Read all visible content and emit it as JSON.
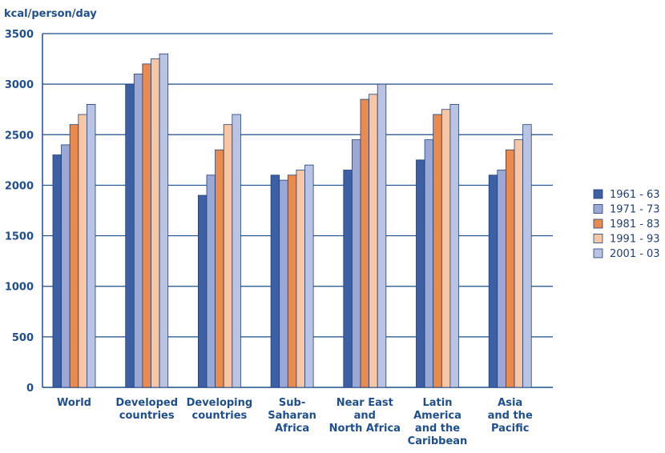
{
  "chart_data": {
    "type": "bar",
    "ylabel": "kcal/person/day",
    "ylim": [
      0,
      3500
    ],
    "yticks": [
      0,
      500,
      1000,
      1500,
      2000,
      2500,
      3000,
      3500
    ],
    "grid": true,
    "legend_position": "right",
    "categories": [
      [
        "World"
      ],
      [
        "Developed",
        "countries"
      ],
      [
        "Developing",
        "countries"
      ],
      [
        "Sub-",
        "Saharan",
        "Africa"
      ],
      [
        "Near East",
        "and",
        "North Africa"
      ],
      [
        "Latin",
        "America",
        "and the",
        "Caribbean"
      ],
      [
        "Asia",
        "and the",
        "Pacific"
      ]
    ],
    "series": [
      {
        "name": "1961 - 63",
        "color": "#3d5fa3",
        "values": [
          2300,
          3000,
          1900,
          2100,
          2150,
          2250,
          2100
        ]
      },
      {
        "name": "1971 - 73",
        "color": "#9ba8d6",
        "values": [
          2400,
          3100,
          2100,
          2050,
          2450,
          2450,
          2150
        ]
      },
      {
        "name": "1981 - 83",
        "color": "#e98a4e",
        "values": [
          2600,
          3200,
          2350,
          2100,
          2850,
          2700,
          2350
        ]
      },
      {
        "name": "1991 - 93",
        "color": "#f7c6a4",
        "values": [
          2700,
          3250,
          2600,
          2150,
          2900,
          2750,
          2450
        ]
      },
      {
        "name": "2001 - 03",
        "color": "#b9c4e4",
        "values": [
          2800,
          3300,
          2700,
          2200,
          3000,
          2800,
          2600
        ]
      }
    ],
    "colors": {
      "axis": "#1f4e8c",
      "bar_stroke": "#1f3f7a",
      "text": "#1f4e8c"
    }
  }
}
